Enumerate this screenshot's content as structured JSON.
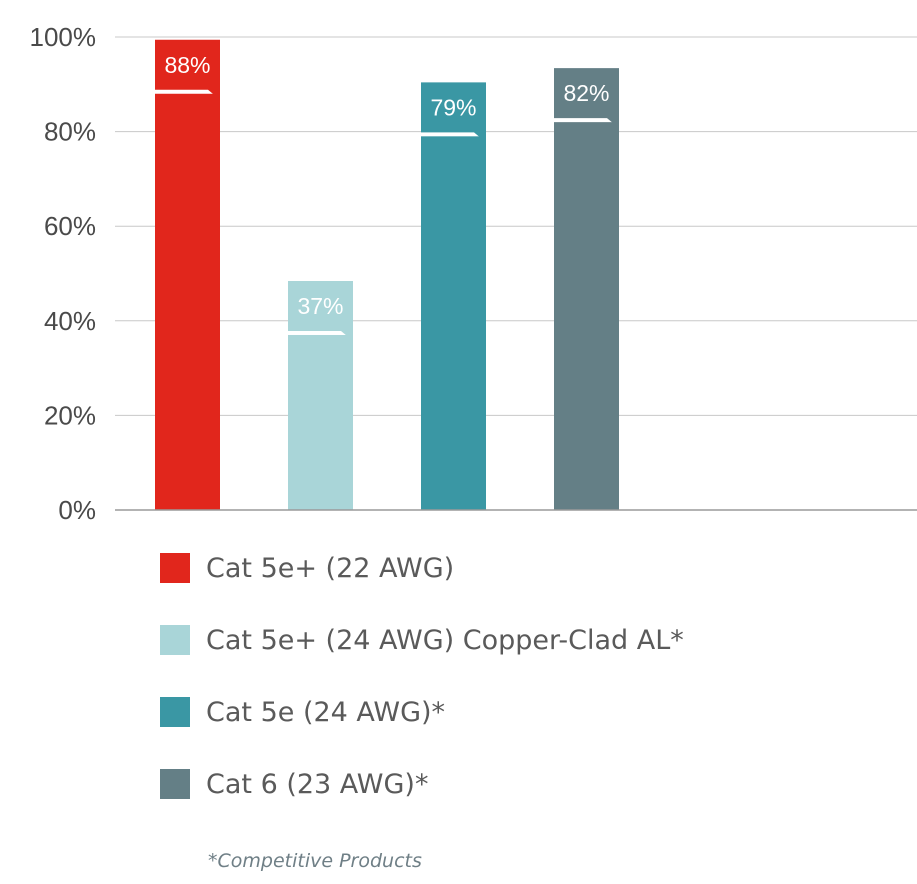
{
  "chart_data": {
    "type": "bar",
    "title": "",
    "xlabel": "",
    "ylabel": "",
    "ylim": [
      0,
      100
    ],
    "yticks": [
      "0%",
      "20%",
      "40%",
      "60%",
      "80%",
      "100%"
    ],
    "grid": true,
    "legend_position": "bottom",
    "categories": [
      "Cat 5e+ (22 AWG)",
      "Cat 5e+ (24 AWG) Copper-Clad AL*",
      "Cat 5e (24 AWG)*",
      "Cat 6 (23 AWG)*"
    ],
    "values": [
      88,
      37,
      79,
      82
    ],
    "value_labels": [
      "88%",
      "37%",
      "79%",
      "82%"
    ],
    "colors": [
      "#e1261c",
      "#a9d5d8",
      "#3a97a4",
      "#647f86"
    ],
    "footnote": "*Competitive Products"
  }
}
